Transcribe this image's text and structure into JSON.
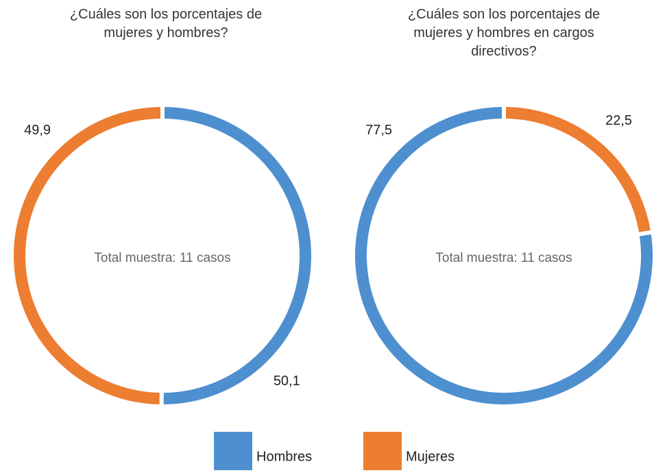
{
  "chart_data": [
    {
      "type": "pie",
      "title": "¿Cuáles son los porcentajes de mujeres y hombres?",
      "center_label": "Total muestra: 11 casos",
      "categories": [
        "Hombres",
        "Mujeres"
      ],
      "values": [
        50.1,
        49.9
      ],
      "value_labels": [
        "50,1",
        "49,9"
      ],
      "colors": [
        "#4e8fcf",
        "#ed7d31"
      ]
    },
    {
      "type": "pie",
      "title": "¿Cuáles son los porcentajes de mujeres y hombres en cargos directivos?",
      "center_label": "Total muestra: 11 casos",
      "categories": [
        "Mujeres",
        "Hombres"
      ],
      "values": [
        22.5,
        77.5
      ],
      "value_labels": [
        "22,5",
        "77,5"
      ],
      "colors": [
        "#ed7d31",
        "#4e8fcf"
      ]
    }
  ]
}
